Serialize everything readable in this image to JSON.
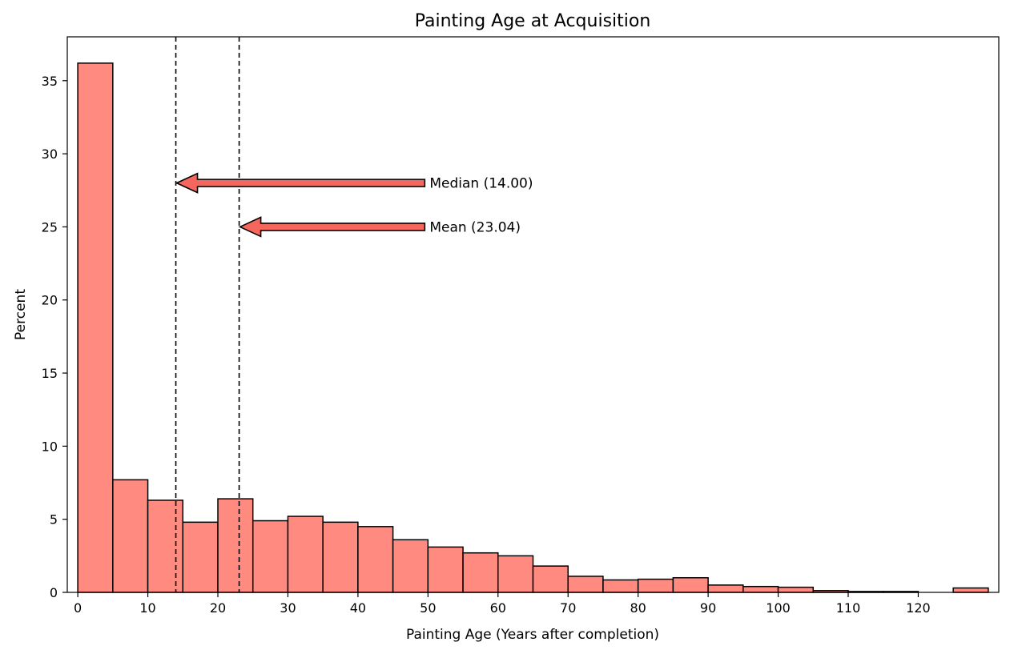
{
  "chart_data": {
    "type": "bar",
    "title": "Painting Age at Acquisition",
    "xlabel": "Painting Age (Years after completion)",
    "ylabel": "Percent",
    "xlim": [
      -1.5,
      131.5
    ],
    "ylim": [
      0,
      38
    ],
    "xticks": [
      0,
      10,
      20,
      30,
      40,
      50,
      60,
      70,
      80,
      90,
      100,
      110,
      120
    ],
    "yticks": [
      0,
      5,
      10,
      15,
      20,
      25,
      30,
      35
    ],
    "bin_width": 5,
    "bin_starts": [
      0,
      5,
      10,
      15,
      20,
      25,
      30,
      35,
      40,
      45,
      50,
      55,
      60,
      65,
      70,
      75,
      80,
      85,
      90,
      95,
      100,
      105,
      110,
      115,
      120,
      125
    ],
    "values": [
      36.2,
      7.7,
      6.3,
      4.8,
      6.4,
      4.9,
      5.2,
      4.8,
      4.5,
      3.6,
      3.1,
      2.7,
      2.5,
      1.8,
      1.1,
      0.85,
      0.9,
      1.0,
      0.5,
      0.4,
      0.35,
      0.12,
      0.06,
      0.06,
      0.0,
      0.3
    ],
    "bar_color": "#ff8a80",
    "arrow_color": "#f5675c",
    "grid": false,
    "annotations": [
      {
        "label": "Median (14.00)",
        "line_x": 14.0,
        "arrow_y": 28,
        "text_x": 50
      },
      {
        "label": "Mean (23.04)",
        "line_x": 23.04,
        "arrow_y": 25,
        "text_x": 50
      }
    ]
  }
}
